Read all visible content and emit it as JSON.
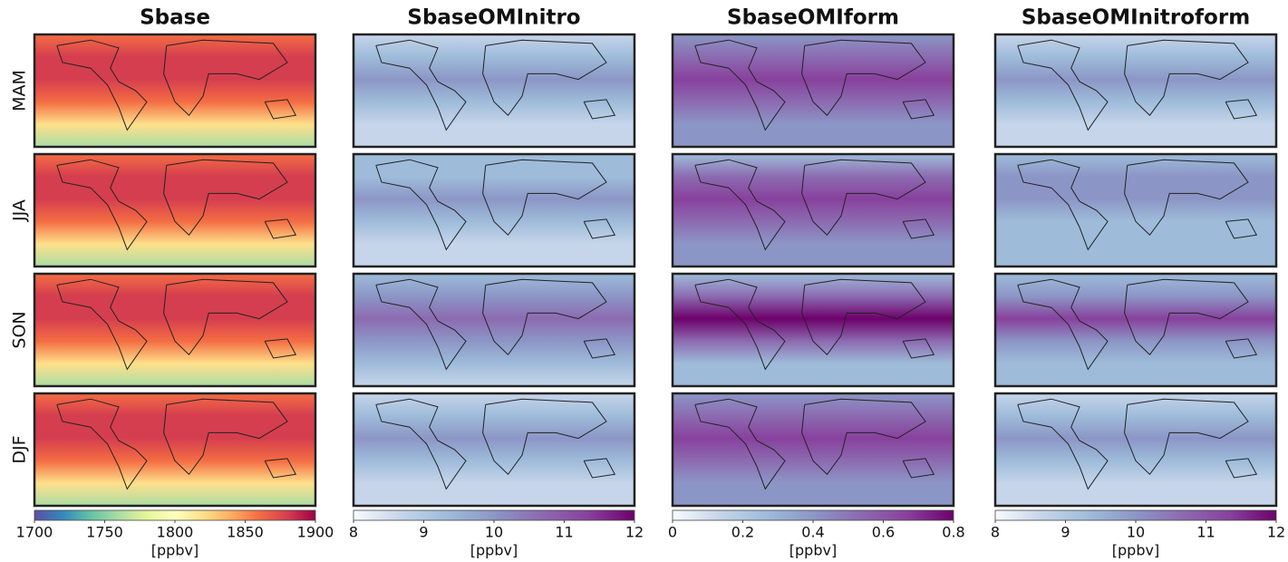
{
  "rows": [
    "MAM",
    "JJA",
    "SON",
    "DJF"
  ],
  "columns": [
    {
      "title": "Sbase",
      "colorbar": {
        "lim": [
          1700,
          1900
        ],
        "ticks": [
          1700,
          1750,
          1800,
          1850,
          1900
        ],
        "unit": "[ppbv]",
        "colormap": [
          "#5e4fa2",
          "#3288bd",
          "#66c2a5",
          "#abdda4",
          "#e6f598",
          "#ffffbf",
          "#fee08b",
          "#fdae61",
          "#f46d43",
          "#d53e4f",
          "#9e0142"
        ]
      }
    },
    {
      "title": "SbaseOMInitro",
      "colorbar": {
        "lim": [
          8,
          12
        ],
        "ticks": [
          8,
          9,
          10,
          11,
          12
        ],
        "unit": "[ppbv]",
        "colormap": [
          "#f7fbff",
          "#c6d5ea",
          "#9ebcda",
          "#8c96c6",
          "#8c6bb1",
          "#88419d",
          "#6e016b"
        ]
      }
    },
    {
      "title": "SbaseOMIform",
      "colorbar": {
        "lim": [
          0,
          0.8
        ],
        "ticks": [
          0,
          0.2,
          0.4,
          0.6,
          0.8
        ],
        "unit": "[ppbv]",
        "colormap": [
          "#f7fbff",
          "#c6d5ea",
          "#9ebcda",
          "#8c96c6",
          "#8c6bb1",
          "#88419d",
          "#6e016b"
        ]
      }
    },
    {
      "title": "SbaseOMInitroform",
      "colorbar": {
        "lim": [
          8,
          12
        ],
        "ticks": [
          8,
          9,
          10,
          11,
          12
        ],
        "unit": "[ppbv]",
        "colormap": [
          "#f7fbff",
          "#c6d5ea",
          "#9ebcda",
          "#8c96c6",
          "#8c6bb1",
          "#88419d",
          "#6e016b"
        ]
      }
    }
  ]
}
